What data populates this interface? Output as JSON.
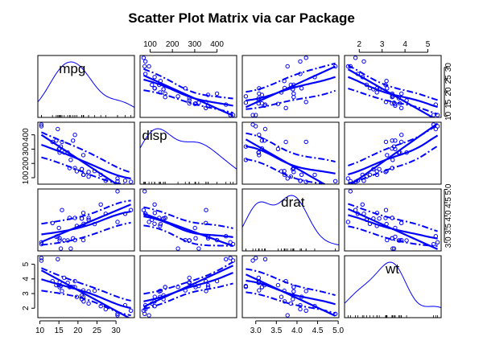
{
  "chart_data": {
    "type": "scatter",
    "title": "Scatter Plot Matrix via car Package",
    "color": "#0000ff",
    "variables": [
      {
        "name": "mpg",
        "range": [
          10.4,
          33.9
        ],
        "ticks": [
          10,
          15,
          20,
          25,
          30
        ],
        "tick_labels": [
          "10",
          "15",
          "20",
          "25",
          "30"
        ],
        "density_peak": 18.5
      },
      {
        "name": "disp",
        "range": [
          71.1,
          472.0
        ],
        "ticks": [
          100,
          200,
          300,
          400
        ],
        "tick_labels": [
          "100",
          "200",
          "300",
          "400"
        ],
        "density_peak": 120
      },
      {
        "name": "drat",
        "range": [
          2.76,
          4.93
        ],
        "ticks": [
          3.0,
          3.5,
          4.0,
          4.5,
          5.0
        ],
        "tick_labels": [
          "3.0",
          "3.5",
          "4.0",
          "4.5",
          "5.0"
        ],
        "density_peak": 3.9
      },
      {
        "name": "wt",
        "range": [
          1.513,
          5.424
        ],
        "ticks": [
          2,
          3,
          4,
          5
        ],
        "tick_labels": [
          "2",
          "3",
          "4",
          "5"
        ],
        "density_peak": 3.45
      }
    ],
    "records": [
      [
        21.0,
        160.0,
        3.9,
        2.62
      ],
      [
        21.0,
        160.0,
        3.9,
        2.875
      ],
      [
        22.8,
        108.0,
        3.85,
        2.32
      ],
      [
        21.4,
        258.0,
        3.08,
        3.215
      ],
      [
        18.7,
        360.0,
        3.15,
        3.44
      ],
      [
        18.1,
        225.0,
        2.76,
        3.46
      ],
      [
        14.3,
        360.0,
        3.21,
        3.57
      ],
      [
        24.4,
        146.7,
        3.69,
        3.19
      ],
      [
        22.8,
        140.8,
        3.92,
        3.15
      ],
      [
        19.2,
        167.6,
        3.92,
        3.44
      ],
      [
        17.8,
        167.6,
        3.92,
        3.44
      ],
      [
        16.4,
        275.8,
        3.07,
        4.07
      ],
      [
        17.3,
        275.8,
        3.07,
        3.73
      ],
      [
        15.2,
        275.8,
        3.07,
        3.78
      ],
      [
        10.4,
        472.0,
        2.93,
        5.25
      ],
      [
        10.4,
        460.0,
        3.0,
        5.424
      ],
      [
        14.7,
        440.0,
        3.23,
        5.345
      ],
      [
        32.4,
        78.7,
        4.08,
        2.2
      ],
      [
        30.4,
        75.7,
        4.93,
        1.615
      ],
      [
        33.9,
        71.1,
        4.22,
        1.835
      ],
      [
        21.5,
        120.1,
        3.7,
        2.465
      ],
      [
        15.5,
        318.0,
        2.76,
        3.52
      ],
      [
        15.2,
        304.0,
        3.15,
        3.435
      ],
      [
        13.3,
        350.0,
        3.73,
        3.84
      ],
      [
        19.2,
        400.0,
        3.08,
        3.845
      ],
      [
        27.3,
        79.0,
        4.08,
        1.935
      ],
      [
        26.0,
        120.3,
        4.43,
        2.14
      ],
      [
        30.4,
        95.1,
        3.77,
        1.513
      ],
      [
        15.8,
        351.0,
        4.22,
        3.17
      ],
      [
        19.7,
        145.0,
        3.62,
        2.77
      ],
      [
        15.0,
        301.0,
        3.54,
        3.57
      ],
      [
        21.4,
        121.0,
        4.11,
        2.78
      ]
    ]
  }
}
